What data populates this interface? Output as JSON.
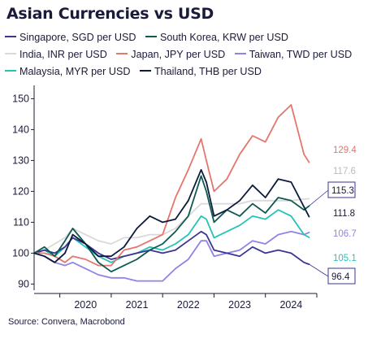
{
  "chart_data": {
    "type": "line",
    "title": "Asian Currencies vs USD",
    "source": "Source: Convera, Macrobond",
    "xlabel": "",
    "ylabel": "",
    "ylim": [
      88,
      153
    ],
    "x_ticks": [
      "2020",
      "2021",
      "2022",
      "2023",
      "2024"
    ],
    "y_ticks": [
      90,
      100,
      110,
      120,
      130,
      140,
      150
    ],
    "grid": false,
    "legend_position": "top",
    "series": [
      {
        "name": "Singapore, SGD per USD",
        "color": "#3b3590",
        "x": [
          2019.5,
          2019.7,
          2019.9,
          2020.1,
          2020.25,
          2020.5,
          2020.75,
          2021.0,
          2021.25,
          2021.5,
          2021.75,
          2022.0,
          2022.25,
          2022.5,
          2022.75,
          2022.85,
          2023.0,
          2023.25,
          2023.5,
          2023.75,
          2024.0,
          2024.25,
          2024.5,
          2024.75,
          2024.85
        ],
        "y": [
          100,
          101,
          100,
          102,
          105,
          103,
          100,
          98,
          99,
          100,
          101,
          100,
          101,
          104,
          107,
          106,
          101,
          100,
          99,
          102,
          100,
          101,
          100,
          97,
          96.4
        ],
        "end_label": "96.4"
      },
      {
        "name": "South Korea, KRW per USD",
        "color": "#0e5a52",
        "x": [
          2019.5,
          2019.7,
          2019.9,
          2020.1,
          2020.25,
          2020.5,
          2020.75,
          2021.0,
          2021.25,
          2021.5,
          2021.75,
          2022.0,
          2022.25,
          2022.5,
          2022.75,
          2022.85,
          2023.0,
          2023.25,
          2023.5,
          2023.75,
          2024.0,
          2024.25,
          2024.5,
          2024.75,
          2024.85
        ],
        "y": [
          100,
          102,
          99,
          104,
          108,
          103,
          97,
          94,
          96,
          98,
          101,
          103,
          107,
          112,
          125,
          120,
          110,
          114,
          112,
          116,
          113,
          118,
          117,
          114,
          115.3
        ],
        "end_label": "115.3"
      },
      {
        "name": "India, INR per USD",
        "color": "#d9d9d9",
        "x": [
          2019.5,
          2019.7,
          2019.9,
          2020.1,
          2020.25,
          2020.5,
          2020.75,
          2021.0,
          2021.25,
          2021.5,
          2021.75,
          2022.0,
          2022.25,
          2022.5,
          2022.75,
          2022.85,
          2023.0,
          2023.25,
          2023.5,
          2023.75,
          2024.0,
          2024.25,
          2024.5,
          2024.75,
          2024.85
        ],
        "y": [
          100,
          101,
          103,
          105,
          108,
          106,
          104,
          103,
          105,
          105,
          106,
          106,
          108,
          112,
          116,
          116,
          116,
          116,
          116,
          117,
          117,
          117,
          117,
          117.5,
          117.6
        ],
        "end_label": "117.6"
      },
      {
        "name": "Japan, JPY per USD",
        "color": "#e5766c",
        "x": [
          2019.5,
          2019.7,
          2019.9,
          2020.1,
          2020.25,
          2020.5,
          2020.75,
          2021.0,
          2021.25,
          2021.5,
          2021.75,
          2022.0,
          2022.25,
          2022.5,
          2022.75,
          2022.85,
          2023.0,
          2023.25,
          2023.5,
          2023.75,
          2024.0,
          2024.25,
          2024.5,
          2024.75,
          2024.85
        ],
        "y": [
          100,
          100,
          99,
          97,
          99,
          98,
          96,
          96,
          101,
          102,
          104,
          106,
          118,
          127,
          137,
          130,
          120,
          124,
          132,
          138,
          136,
          144,
          148,
          132,
          129.4
        ],
        "end_label": "129.4"
      },
      {
        "name": "Taiwan, TWD per USD",
        "color": "#8e84e8",
        "x": [
          2019.5,
          2019.7,
          2019.9,
          2020.1,
          2020.25,
          2020.5,
          2020.75,
          2021.0,
          2021.25,
          2021.5,
          2021.75,
          2022.0,
          2022.25,
          2022.5,
          2022.75,
          2022.85,
          2023.0,
          2023.25,
          2023.5,
          2023.75,
          2024.0,
          2024.25,
          2024.5,
          2024.75,
          2024.85
        ],
        "y": [
          100,
          99,
          97,
          96,
          97,
          95,
          93,
          92,
          92,
          91,
          91,
          91,
          95,
          98,
          104,
          104,
          99,
          100,
          101,
          104,
          103,
          106,
          107,
          106,
          106.7
        ],
        "end_label": "106.7"
      },
      {
        "name": "Malaysia, MYR per USD",
        "color": "#27c3b6",
        "x": [
          2019.5,
          2019.7,
          2019.9,
          2020.1,
          2020.25,
          2020.5,
          2020.75,
          2021.0,
          2021.25,
          2021.5,
          2021.75,
          2022.0,
          2022.25,
          2022.5,
          2022.75,
          2022.85,
          2023.0,
          2023.25,
          2023.5,
          2023.75,
          2024.0,
          2024.25,
          2024.5,
          2024.75,
          2024.85
        ],
        "y": [
          100,
          101,
          99,
          102,
          105,
          102,
          99,
          97,
          99,
          100,
          102,
          101,
          103,
          106,
          112,
          111,
          105,
          107,
          109,
          112,
          111,
          114,
          112,
          106,
          105.1
        ],
        "end_label": "105.1"
      },
      {
        "name": "Thailand, THB per USD",
        "color": "#0d1a3c",
        "x": [
          2019.5,
          2019.7,
          2019.9,
          2020.1,
          2020.25,
          2020.5,
          2020.75,
          2021.0,
          2021.25,
          2021.5,
          2021.75,
          2022.0,
          2022.25,
          2022.5,
          2022.75,
          2022.85,
          2023.0,
          2023.25,
          2023.5,
          2023.75,
          2024.0,
          2024.25,
          2024.5,
          2024.75,
          2024.85
        ],
        "y": [
          100,
          99,
          97,
          100,
          106,
          103,
          99,
          99,
          102,
          108,
          112,
          110,
          111,
          117,
          127,
          123,
          112,
          114,
          117,
          122,
          118,
          124,
          123,
          115,
          111.8
        ],
        "end_label": "111.8"
      }
    ]
  }
}
